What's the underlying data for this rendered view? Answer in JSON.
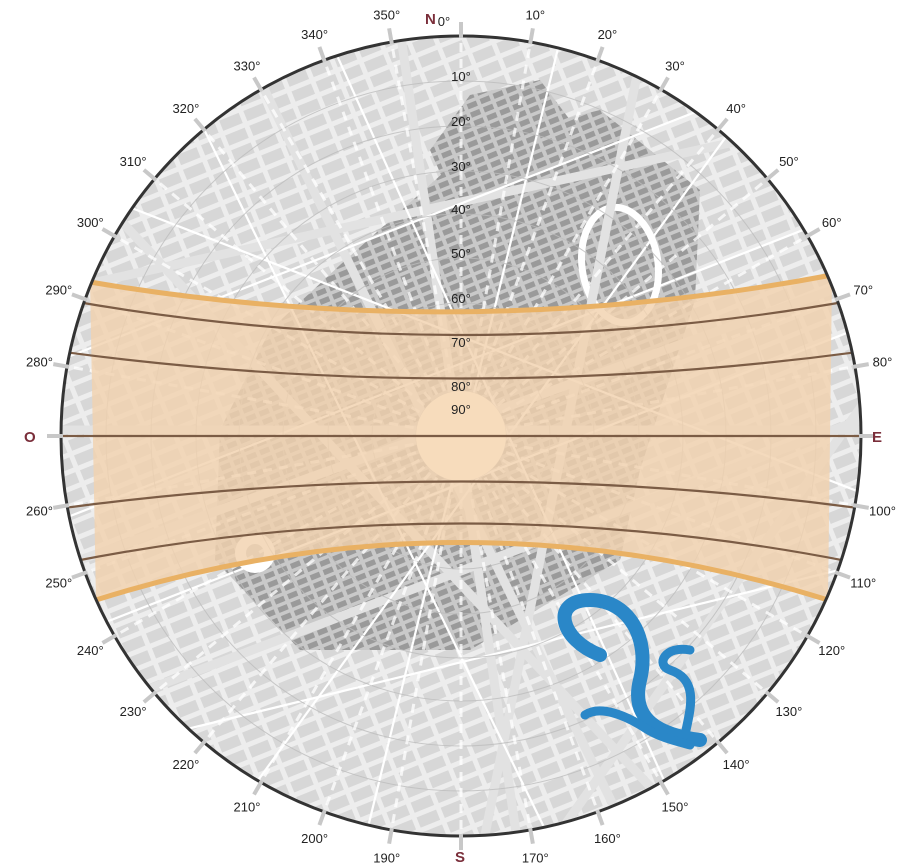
{
  "cardinals": {
    "north": "N",
    "east": "E",
    "south": "S",
    "west": "O"
  },
  "azimuth_labels": [
    "0°",
    "10°",
    "20°",
    "30°",
    "40°",
    "50°",
    "60°",
    "70°",
    "80°",
    "100°",
    "110°",
    "120°",
    "130°",
    "140°",
    "150°",
    "160°",
    "170°",
    "190°",
    "200°",
    "210°",
    "220°",
    "230°",
    "240°",
    "250°",
    "260°",
    "280°",
    "290°",
    "300°",
    "310°",
    "320°",
    "330°",
    "340°",
    "350°"
  ],
  "altitude_labels": [
    "10°",
    "20°",
    "30°",
    "40°",
    "50°",
    "60°",
    "70°",
    "80°",
    "90°"
  ],
  "colors": {
    "band_fill": "#f1d2ae",
    "band_edge": "#e9b164",
    "sun_path": "#7b5c45",
    "cardinal_text": "#7a2e3a",
    "wind_icon": "#2a87c8",
    "map_background": "#ececec",
    "outer_circle": "#333333"
  },
  "icons": {
    "wind": "wind-gust-icon"
  }
}
